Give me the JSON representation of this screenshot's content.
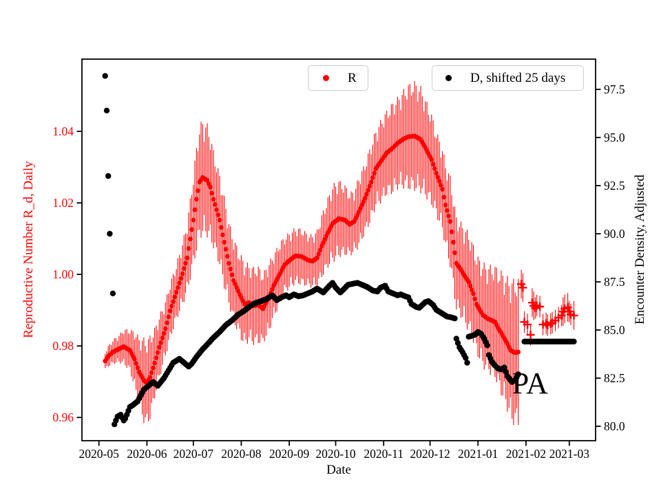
{
  "chart_data": {
    "type": "scatter",
    "title": "",
    "xlabel": "Date",
    "ylabel_left": "Reproductive Number R_d, Daily",
    "ylabel_right": "Encounter Density, Adjusted",
    "date_origin": "2020-05-01",
    "x_range_days": [
      -11,
      321
    ],
    "y_left_range": [
      0.9535,
      1.0602
    ],
    "y_right_range": [
      79.25,
      99.07
    ],
    "grid": false,
    "colors": {
      "r_series": "#ff0000",
      "d_series": "#000000",
      "spine": "#000000",
      "legend_border": "#cccccc"
    },
    "x_ticks": [
      {
        "day": 0,
        "label": "2020-05"
      },
      {
        "day": 31,
        "label": "2020-06"
      },
      {
        "day": 61,
        "label": "2020-07"
      },
      {
        "day": 92,
        "label": "2020-08"
      },
      {
        "day": 123,
        "label": "2020-09"
      },
      {
        "day": 153,
        "label": "2020-10"
      },
      {
        "day": 184,
        "label": "2020-11"
      },
      {
        "day": 214,
        "label": "2020-12"
      },
      {
        "day": 245,
        "label": "2021-01"
      },
      {
        "day": 276,
        "label": "2021-02"
      },
      {
        "day": 304,
        "label": "2021-03"
      }
    ],
    "y_left_ticks": [
      {
        "value": 0.96,
        "label": "0.96"
      },
      {
        "value": 0.98,
        "label": "0.98"
      },
      {
        "value": 1.0,
        "label": "1.00"
      },
      {
        "value": 1.02,
        "label": "1.02"
      },
      {
        "value": 1.04,
        "label": "1.04"
      }
    ],
    "y_right_ticks": [
      {
        "value": 80.0,
        "label": "80.0"
      },
      {
        "value": 82.5,
        "label": "82.5"
      },
      {
        "value": 85.0,
        "label": "85.0"
      },
      {
        "value": 87.5,
        "label": "87.5"
      },
      {
        "value": 90.0,
        "label": "90.0"
      },
      {
        "value": 92.5,
        "label": "92.5"
      },
      {
        "value": 95.0,
        "label": "95.0"
      },
      {
        "value": 97.5,
        "label": "97.5"
      }
    ],
    "legend": [
      {
        "label": "R",
        "marker_color": "#ff0000",
        "marker": "dot"
      },
      {
        "label": "D, shifted 25 days",
        "marker_color": "#000000",
        "marker": "dot"
      }
    ],
    "annotation": {
      "text": "PA",
      "day": 267,
      "value_right": 82.7
    },
    "series": [
      {
        "name": "R",
        "axis": "left",
        "color": "#ff0000",
        "marker": "dot_with_errorbar",
        "points_day_value_err": [
          [
            4,
            0.9758,
            0.0025
          ],
          [
            6,
            0.9771,
            0.003
          ],
          [
            9,
            0.9783,
            0.0035
          ],
          [
            13,
            0.9792,
            0.004
          ],
          [
            16,
            0.9798,
            0.005
          ],
          [
            20,
            0.9788,
            0.006
          ],
          [
            23,
            0.9763,
            0.008
          ],
          [
            26,
            0.9727,
            0.01
          ],
          [
            29,
            0.9704,
            0.012
          ],
          [
            31,
            0.9696,
            0.012
          ],
          [
            33,
            0.9712,
            0.012
          ],
          [
            36,
            0.9752,
            0.01
          ],
          [
            39,
            0.9796,
            0.009
          ],
          [
            43,
            0.9848,
            0.008
          ],
          [
            46,
            0.9898,
            0.008
          ],
          [
            50,
            0.995,
            0.008
          ],
          [
            54,
            1.0002,
            0.009
          ],
          [
            57,
            1.0046,
            0.01
          ],
          [
            61,
            1.0152,
            0.013
          ],
          [
            63,
            1.021,
            0.015
          ],
          [
            65,
            1.0258,
            0.016
          ],
          [
            67,
            1.0271,
            0.0165
          ],
          [
            70,
            1.0263,
            0.016
          ],
          [
            72,
            1.0244,
            0.015
          ],
          [
            74,
            1.021,
            0.014
          ],
          [
            78,
            1.0152,
            0.013
          ],
          [
            81,
            1.009,
            0.013
          ],
          [
            84,
            1.0031,
            0.012
          ],
          [
            87,
            0.9983,
            0.012
          ],
          [
            91,
            0.9944,
            0.012
          ],
          [
            94,
            0.9917,
            0.012
          ],
          [
            97,
            0.9921,
            0.011
          ],
          [
            100,
            0.9912,
            0.011
          ],
          [
            103,
            0.9915,
            0.011
          ],
          [
            106,
            0.9904,
            0.01
          ],
          [
            110,
            0.9937,
            0.01
          ],
          [
            113,
            0.9969,
            0.009
          ],
          [
            117,
            1.0002,
            0.009
          ],
          [
            120,
            1.0027,
            0.008
          ],
          [
            124,
            1.0042,
            0.008
          ],
          [
            127,
            1.0052,
            0.008
          ],
          [
            131,
            1.005,
            0.008
          ],
          [
            135,
            1.004,
            0.0075
          ],
          [
            138,
            1.0037,
            0.0075
          ],
          [
            141,
            1.0046,
            0.008
          ],
          [
            144,
            1.0079,
            0.009
          ],
          [
            148,
            1.0117,
            0.01
          ],
          [
            151,
            1.0142,
            0.011
          ],
          [
            155,
            1.0156,
            0.011
          ],
          [
            159,
            1.0152,
            0.01
          ],
          [
            162,
            1.014,
            0.009
          ],
          [
            165,
            1.0148,
            0.009
          ],
          [
            168,
            1.0175,
            0.01
          ],
          [
            172,
            1.0213,
            0.01
          ],
          [
            176,
            1.0258,
            0.011
          ],
          [
            179,
            1.0296,
            0.011
          ],
          [
            183,
            1.0321,
            0.012
          ],
          [
            186,
            1.034,
            0.012
          ],
          [
            190,
            1.0354,
            0.013
          ],
          [
            193,
            1.0367,
            0.013
          ],
          [
            197,
            1.0379,
            0.014
          ],
          [
            200,
            1.0385,
            0.015
          ],
          [
            204,
            1.0387,
            0.0155
          ],
          [
            208,
            1.0377,
            0.015
          ],
          [
            211,
            1.0354,
            0.014
          ],
          [
            215,
            1.0321,
            0.013
          ],
          [
            218,
            1.0283,
            0.012
          ],
          [
            222,
            1.0238,
            0.012
          ],
          [
            224,
            1.0194,
            0.012
          ],
          [
            227,
            1.0148,
            0.013
          ],
          [
            229,
            1.009,
            0.013
          ],
          [
            231,
            1.0031,
            0.0135
          ],
          [
            234,
            1.0013,
            0.0135
          ],
          [
            236,
            0.9998,
            0.014
          ],
          [
            239,
            0.9979,
            0.014
          ],
          [
            242,
            0.9946,
            0.014
          ],
          [
            244,
            0.9917,
            0.014
          ],
          [
            248,
            0.9887,
            0.015
          ],
          [
            251,
            0.9877,
            0.015
          ],
          [
            253,
            0.9873,
            0.0155
          ],
          [
            256,
            0.9867,
            0.016
          ],
          [
            258,
            0.985,
            0.017
          ],
          [
            261,
            0.9829,
            0.018
          ],
          [
            264,
            0.9806,
            0.019
          ],
          [
            266,
            0.9788,
            0.02
          ],
          [
            269,
            0.9781,
            0.021
          ],
          [
            271,
            0.9783,
            0.021
          ]
        ]
      },
      {
        "name": "R (late, plus markers)",
        "axis": "left",
        "color": "#ff0000",
        "marker": "plus_with_errorbar",
        "points_day_value_err": [
          [
            273,
            0.9973,
            0.004
          ],
          [
            274,
            0.9963,
            0.004
          ],
          [
            275,
            0.9867,
            0.003
          ],
          [
            277,
            0.986,
            0.003
          ],
          [
            279,
            0.9831,
            0.003
          ],
          [
            280,
            0.9921,
            0.004
          ],
          [
            281,
            0.9912,
            0.004
          ],
          [
            282,
            0.9906,
            0.003
          ],
          [
            283,
            0.9913,
            0.003
          ],
          [
            285,
            0.991,
            0.003
          ],
          [
            287,
            0.986,
            0.003
          ],
          [
            289,
            0.9863,
            0.003
          ],
          [
            290,
            0.9858,
            0.003
          ],
          [
            292,
            0.9862,
            0.003
          ],
          [
            293,
            0.9865,
            0.003
          ],
          [
            295,
            0.9871,
            0.003
          ],
          [
            297,
            0.9879,
            0.003
          ],
          [
            299,
            0.9885,
            0.003
          ],
          [
            300,
            0.9896,
            0.004
          ],
          [
            301,
            0.9904,
            0.004
          ],
          [
            303,
            0.9908,
            0.004
          ],
          [
            304,
            0.9896,
            0.003
          ],
          [
            305,
            0.9888,
            0.003
          ],
          [
            307,
            0.9885,
            0.004
          ]
        ]
      },
      {
        "name": "D, shifted 25 days",
        "axis": "right",
        "color": "#000000",
        "marker": "dot",
        "early_points_day_value": [
          [
            4,
            98.2
          ],
          [
            5,
            96.4
          ],
          [
            6,
            93.0
          ],
          [
            7,
            90.0
          ],
          [
            9,
            86.9
          ]
        ],
        "points_day_value": [
          [
            10,
            80.1
          ],
          [
            12,
            80.5
          ],
          [
            14,
            80.6
          ],
          [
            16,
            80.3
          ],
          [
            17,
            80.4
          ],
          [
            20,
            81.0
          ],
          [
            22,
            81.1
          ],
          [
            25,
            81.3
          ],
          [
            29,
            81.9
          ],
          [
            32,
            82.1
          ],
          [
            35,
            82.3
          ],
          [
            38,
            82.1
          ],
          [
            42,
            82.5
          ],
          [
            45,
            82.9
          ],
          [
            48,
            83.3
          ],
          [
            52,
            83.5
          ],
          [
            55,
            83.3
          ],
          [
            58,
            83.1
          ],
          [
            60,
            83.25
          ],
          [
            63,
            83.6
          ],
          [
            67,
            84.0
          ],
          [
            70,
            84.25
          ],
          [
            74,
            84.6
          ],
          [
            78,
            84.9
          ],
          [
            82,
            85.25
          ],
          [
            86,
            85.5
          ],
          [
            90,
            85.8
          ],
          [
            94,
            86.0
          ],
          [
            97,
            86.2
          ],
          [
            101,
            86.4
          ],
          [
            105,
            86.5
          ],
          [
            108,
            86.6
          ],
          [
            112,
            86.8
          ],
          [
            115,
            86.55
          ],
          [
            118,
            86.7
          ],
          [
            121,
            86.8
          ],
          [
            123,
            86.7
          ],
          [
            126,
            86.85
          ],
          [
            129,
            86.75
          ],
          [
            132,
            86.8
          ],
          [
            135,
            86.9
          ],
          [
            138,
            87.0
          ],
          [
            141,
            87.15
          ],
          [
            143,
            87.05
          ],
          [
            145,
            86.95
          ],
          [
            149,
            87.3
          ],
          [
            151,
            87.45
          ],
          [
            153,
            87.2
          ],
          [
            156,
            86.95
          ],
          [
            158,
            87.1
          ],
          [
            161,
            87.35
          ],
          [
            164,
            87.4
          ],
          [
            167,
            87.45
          ],
          [
            170,
            87.35
          ],
          [
            173,
            87.25
          ],
          [
            177,
            87.05
          ],
          [
            180,
            87.0
          ],
          [
            182,
            87.2
          ],
          [
            185,
            87.3
          ],
          [
            187,
            87.0
          ],
          [
            190,
            86.9
          ],
          [
            193,
            86.8
          ],
          [
            195,
            86.85
          ],
          [
            198,
            86.75
          ],
          [
            200,
            86.7
          ],
          [
            202,
            86.35
          ],
          [
            205,
            86.2
          ],
          [
            207,
            86.15
          ],
          [
            209,
            86.3
          ],
          [
            211,
            86.45
          ],
          [
            213,
            86.5
          ],
          [
            216,
            86.3
          ],
          [
            218,
            86.05
          ],
          [
            220,
            85.95
          ],
          [
            223,
            85.8
          ],
          [
            225,
            85.7
          ],
          [
            228,
            85.65
          ],
          [
            230,
            85.6
          ],
          [
            231,
            84.55
          ],
          [
            233,
            84.1
          ],
          [
            235,
            83.85
          ],
          [
            237,
            83.55
          ],
          [
            238,
            83.3
          ],
          [
            239,
            84.65
          ],
          [
            241,
            84.7
          ],
          [
            243,
            84.75
          ],
          [
            245,
            84.9
          ],
          [
            247,
            84.8
          ],
          [
            249,
            84.55
          ],
          [
            251,
            84.2
          ],
          [
            252,
            83.7
          ],
          [
            254,
            83.35
          ],
          [
            256,
            83.15
          ],
          [
            258,
            83.0
          ],
          [
            260,
            82.95
          ],
          [
            262,
            83.05
          ],
          [
            264,
            82.6
          ],
          [
            266,
            82.4
          ],
          [
            267,
            82.3
          ],
          [
            269,
            82.4
          ],
          [
            271,
            82.7
          ]
        ],
        "flat_segment": {
          "from_day": 275,
          "to_day": 307,
          "value": 84.4
        }
      }
    ]
  }
}
